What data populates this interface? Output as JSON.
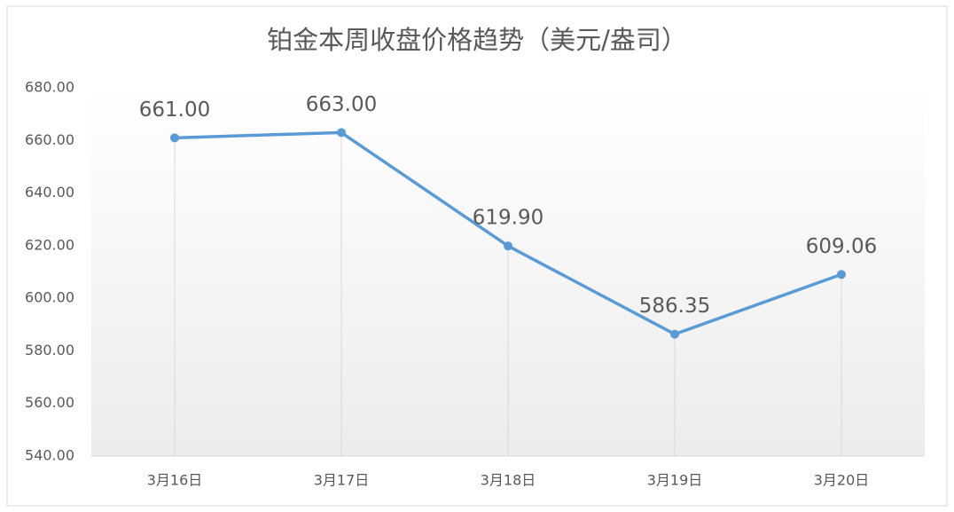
{
  "chart_data": {
    "type": "line",
    "title": "铂金本周收盘价格趋势（美元/盎司）",
    "categories": [
      "3月16日",
      "3月17日",
      "3月18日",
      "3月19日",
      "3月20日"
    ],
    "series": [
      {
        "name": null,
        "color": "#5b9bd5",
        "values": [
          661,
          663,
          619.9,
          586.35,
          609.06
        ],
        "value_labels": [
          "661.00",
          "663.00",
          "619.90",
          "586.35",
          "609.06"
        ]
      }
    ],
    "ylim": [
      540,
      680
    ],
    "yticks": [
      {
        "value": 540,
        "label": "540.00"
      },
      {
        "value": 560,
        "label": "560.00"
      },
      {
        "value": 580,
        "label": "580.00"
      },
      {
        "value": 600,
        "label": "600.00"
      },
      {
        "value": 620,
        "label": "620.00"
      },
      {
        "value": 640,
        "label": "640.00"
      },
      {
        "value": 660,
        "label": "660.00"
      },
      {
        "value": 680,
        "label": "680.00"
      }
    ],
    "drop_lines": true,
    "grid": false
  }
}
